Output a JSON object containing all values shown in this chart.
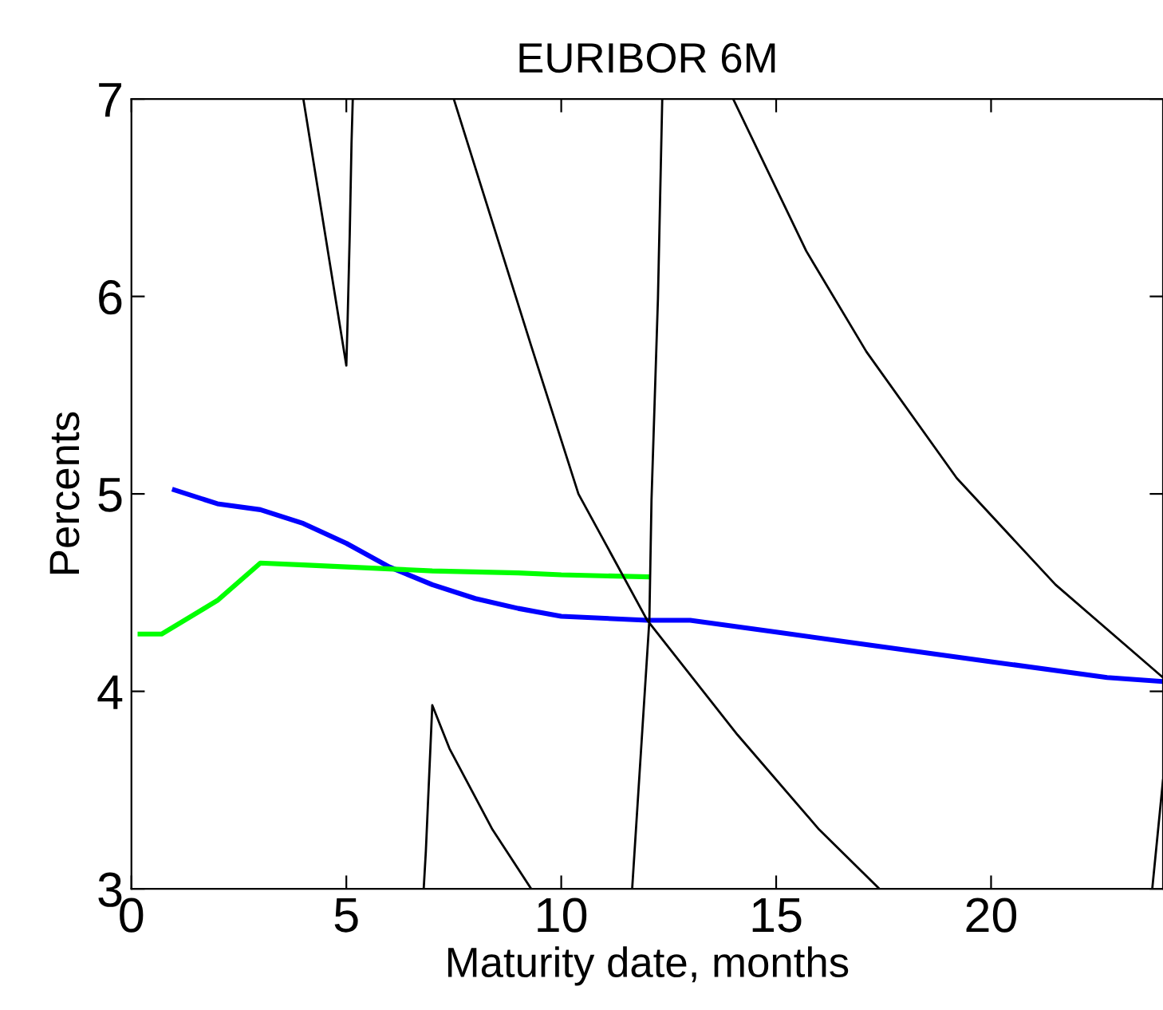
{
  "chart_data": {
    "type": "line",
    "title": "EURIBOR 6M",
    "xlabel": "Maturity date, months",
    "ylabel": "Percents",
    "xlim": [
      0,
      24
    ],
    "ylim": [
      3,
      7
    ],
    "xticks": [
      0,
      5,
      10,
      15,
      20
    ],
    "yticks": [
      3,
      4,
      5,
      6,
      7
    ],
    "grid": false,
    "legend": false,
    "marker": "none",
    "line_style": "solid",
    "series": [
      {
        "color": "#0000ff",
        "x": [
          1.0,
          2.0,
          3.0,
          4.0,
          5.0,
          6.0,
          7.0,
          8.0,
          9.0,
          10.0,
          12.0,
          13.0,
          15.0,
          17.0,
          20.0,
          22.7,
          24.0
        ],
        "values": [
          5.02,
          4.95,
          4.92,
          4.85,
          4.75,
          4.63,
          4.54,
          4.47,
          4.42,
          4.38,
          4.36,
          4.36,
          4.3,
          4.24,
          4.15,
          4.07,
          4.05
        ]
      },
      {
        "color": "#00ff00",
        "x": [
          0.2,
          0.7,
          2.0,
          3.0,
          4.0,
          5.0,
          7.0,
          9.0,
          10.0,
          12.0
        ],
        "values": [
          4.29,
          4.29,
          4.46,
          4.65,
          4.64,
          4.63,
          4.61,
          4.6,
          4.59,
          4.58
        ]
      },
      {
        "color": "#000000",
        "x": [
          4.0,
          5.0,
          5.03,
          5.08,
          5.12,
          5.15,
          null,
          7.5,
          9.3,
          10.4,
          12.0,
          14.1,
          16.0,
          17.4,
          null,
          6.8,
          6.85,
          7.0,
          7.4,
          8.4,
          9.3,
          null,
          11.65,
          12.05,
          12.1,
          12.25,
          12.35,
          null,
          14.0,
          15.7,
          17.1,
          19.2,
          21.5,
          24.0,
          null,
          23.75,
          24.0
        ],
        "values": [
          7.0,
          5.65,
          5.88,
          6.32,
          6.77,
          7.0,
          null,
          7.0,
          5.75,
          5.0,
          4.36,
          3.78,
          3.3,
          3.0,
          null,
          3.0,
          3.19,
          3.93,
          3.71,
          3.3,
          3.0,
          null,
          3.0,
          4.36,
          4.97,
          5.99,
          7.0,
          null,
          7.0,
          6.23,
          5.72,
          5.08,
          4.54,
          4.07,
          null,
          3.0,
          3.55
        ]
      }
    ]
  }
}
